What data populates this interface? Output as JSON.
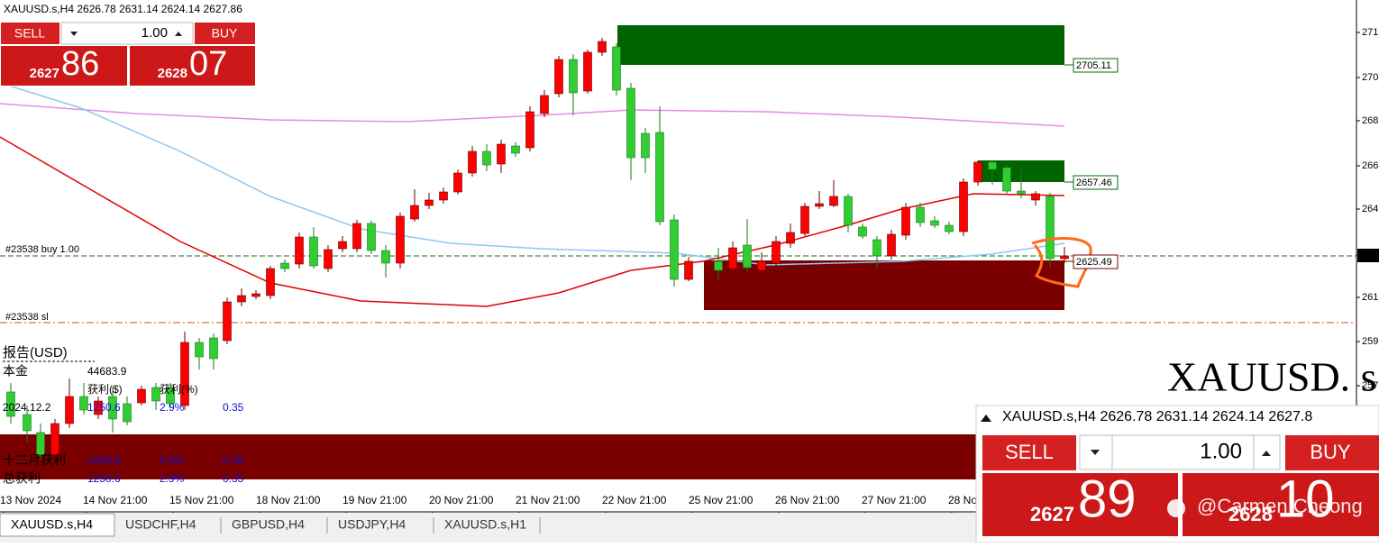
{
  "header": {
    "symbol_info": "XAUUSD.s,H4  2626.78 2631.14 2624.14 2627.86"
  },
  "trade_panel": {
    "sell": "SELL",
    "volume": "1.00",
    "buy": "BUY",
    "bid_prefix": "2627",
    "bid_big": "86",
    "ask_prefix": "2628",
    "ask_big": "07"
  },
  "price_axis": [
    "271",
    "270",
    "268",
    "266",
    "264",
    "262",
    "261",
    "259",
    "257"
  ],
  "price_labels": [
    "2705.11",
    "2657.46",
    "2625.49"
  ],
  "order_lines": [
    "#23538 buy 1.00",
    "#23538 sl"
  ],
  "report": {
    "title": "报告(USD)",
    "capital_label": "本金",
    "capital": "44683.9",
    "profit_usd_label": "获利($)",
    "profit_pct_label": "获利(%)",
    "rows": [
      [
        "2024.12.2",
        "1250.6",
        "2.9%",
        "0.35"
      ],
      [
        "十二月获利",
        "1250.6",
        "2.9%",
        "0.35"
      ],
      [
        "总获利",
        "1250.6",
        "2.9%",
        "0.35"
      ]
    ]
  },
  "time_axis": [
    "13 Nov 2024",
    "14 Nov 21:00",
    "15 Nov 21:00",
    "18 Nov 21:00",
    "19 Nov 21:00",
    "20 Nov 21:00",
    "21 Nov 21:00",
    "22 Nov 21:00",
    "25 Nov 21:00",
    "26 Nov 21:00",
    "27 Nov 21:00",
    "28 No"
  ],
  "tabs": [
    "XAUUSD.s,H4",
    "USDCHF,H4",
    "GBPUSD,H4",
    "USDJPY,H4",
    "XAUUSD.s,H1"
  ],
  "overlay": {
    "symbol": "XAUUSD. s",
    "header": "XAUUSD.s,H4  2626.78 2631.14 2624.14 2627.8",
    "sell": "SELL",
    "volume": "1.00",
    "buy": "BUY",
    "bid_prefix": "2627",
    "bid_big": "89",
    "ask_prefix": "2628",
    "ask_big": "10"
  },
  "watermark": "@Carmen Cheong"
}
